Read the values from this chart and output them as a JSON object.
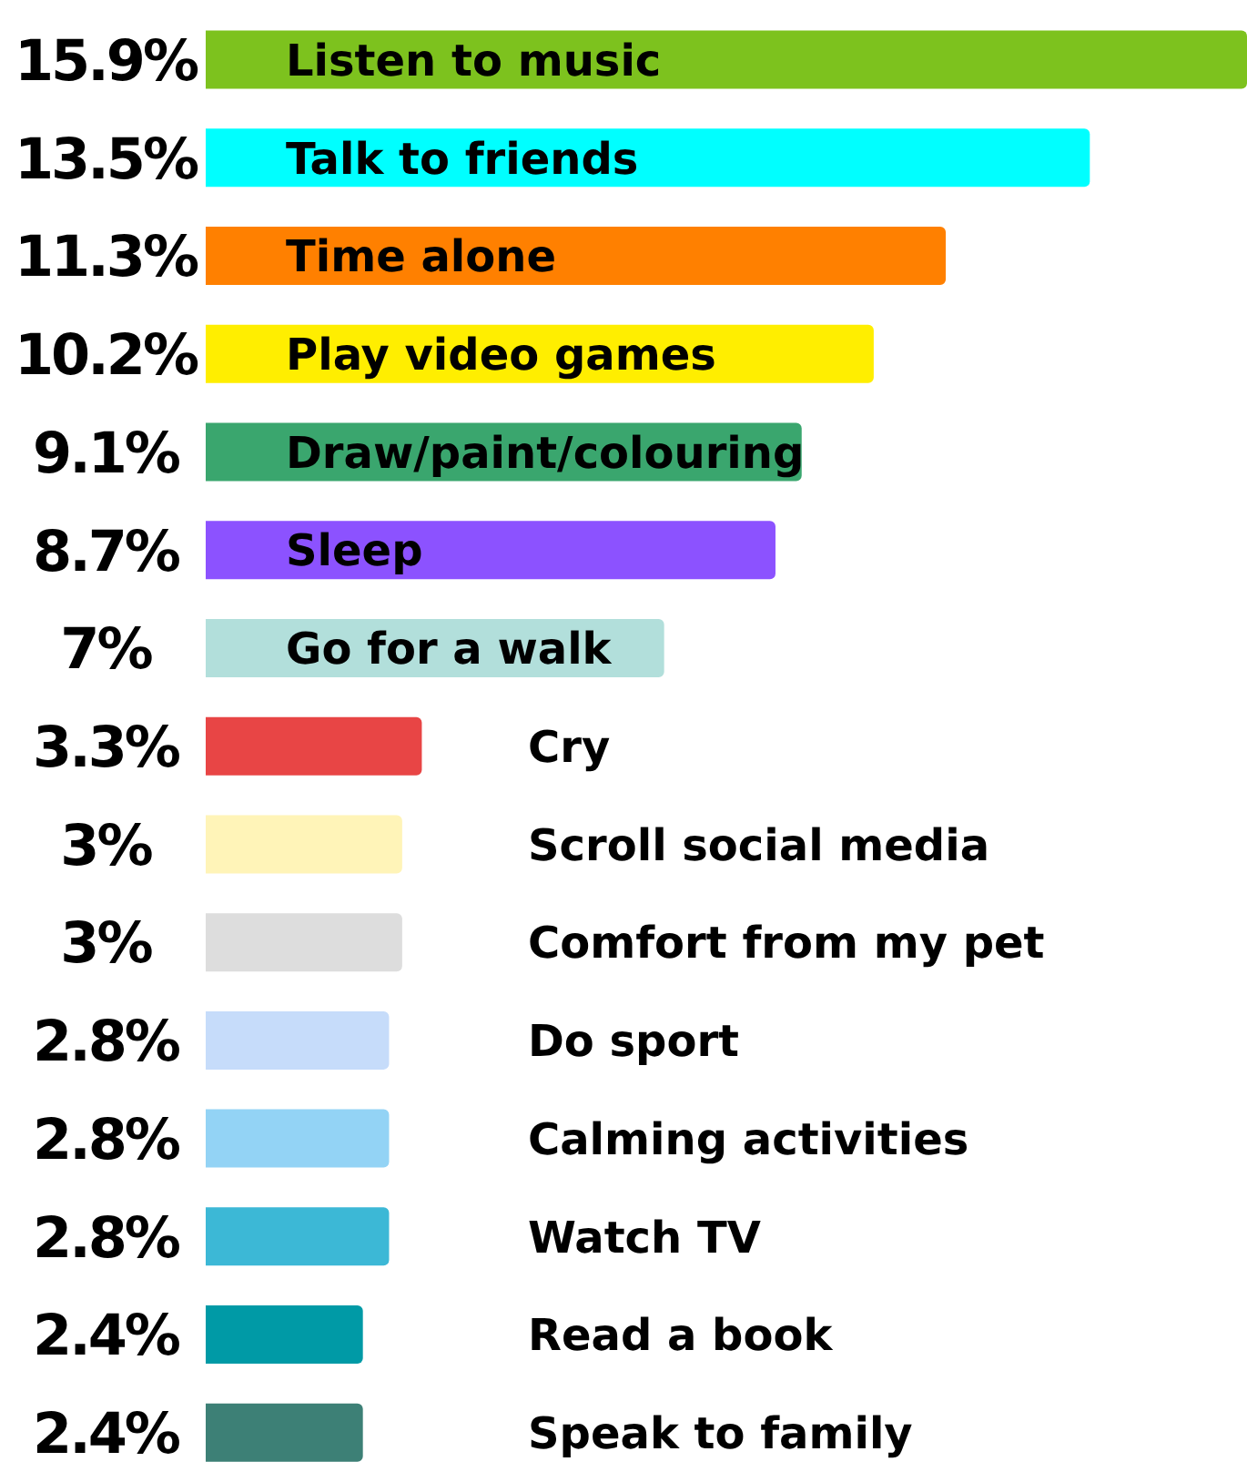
{
  "chart_data": {
    "type": "bar",
    "orientation": "horizontal",
    "categories": [
      "Listen to music",
      "Talk to friends",
      "Time alone",
      "Play video games",
      "Draw/paint/colouring",
      "Sleep",
      "Go for a walk",
      "Cry",
      "Scroll social media",
      "Comfort from my pet",
      "Do sport",
      "Calming activities",
      "Watch TV",
      "Read a book",
      "Speak to family"
    ],
    "values": [
      15.9,
      13.5,
      11.3,
      10.2,
      9.1,
      8.7,
      7,
      3.3,
      3,
      3,
      2.8,
      2.8,
      2.8,
      2.4,
      2.4
    ],
    "value_labels": [
      "15.9%",
      "13.5%",
      "11.3%",
      "10.2%",
      "9.1%",
      "8.7%",
      "7%",
      "3.3%",
      "3%",
      "3%",
      "2.8%",
      "2.8%",
      "2.8%",
      "2.4%",
      "2.4%"
    ],
    "colors": [
      "#7dc21e",
      "#00ffff",
      "#ff8000",
      "#ffee00",
      "#3aa66e",
      "#8c52ff",
      "#b2dfdb",
      "#e84545",
      "#fff4b8",
      "#dddddd",
      "#c6dcfa",
      "#93d3f5",
      "#3cb8d6",
      "#009aa6",
      "#3d8076"
    ]
  }
}
